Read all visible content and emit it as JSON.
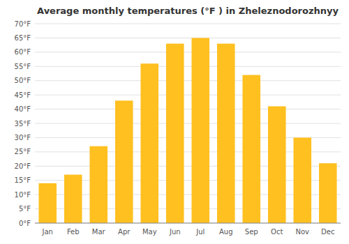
{
  "chart_data": {
    "type": "bar",
    "title": "Average monthly temperatures (°F ) in Zheleznodorozhnyy",
    "categories": [
      "Jan",
      "Feb",
      "Mar",
      "Apr",
      "May",
      "Jun",
      "Jul",
      "Aug",
      "Sep",
      "Oct",
      "Nov",
      "Dec"
    ],
    "values": [
      14,
      17,
      27,
      43,
      56,
      63,
      65,
      63,
      52,
      41,
      30,
      21
    ],
    "color": "#FFC020",
    "ylim": [
      0,
      70
    ],
    "yticks": [
      {
        "value": 0,
        "label": "0°F"
      },
      {
        "value": 5,
        "label": "5°F"
      },
      {
        "value": 10,
        "label": "10°F"
      },
      {
        "value": 15,
        "label": "15°F"
      },
      {
        "value": 20,
        "label": "20°F"
      },
      {
        "value": 25,
        "label": "25°F"
      },
      {
        "value": 30,
        "label": "30°F"
      },
      {
        "value": 35,
        "label": "35°F"
      },
      {
        "value": 40,
        "label": "40°F"
      },
      {
        "value": 45,
        "label": "45°F"
      },
      {
        "value": 50,
        "label": "50°F"
      },
      {
        "value": 55,
        "label": "55°F"
      },
      {
        "value": 60,
        "label": "60°F"
      },
      {
        "value": 65,
        "label": "65°F"
      },
      {
        "value": 70,
        "label": "70°F"
      }
    ],
    "grid": true
  }
}
